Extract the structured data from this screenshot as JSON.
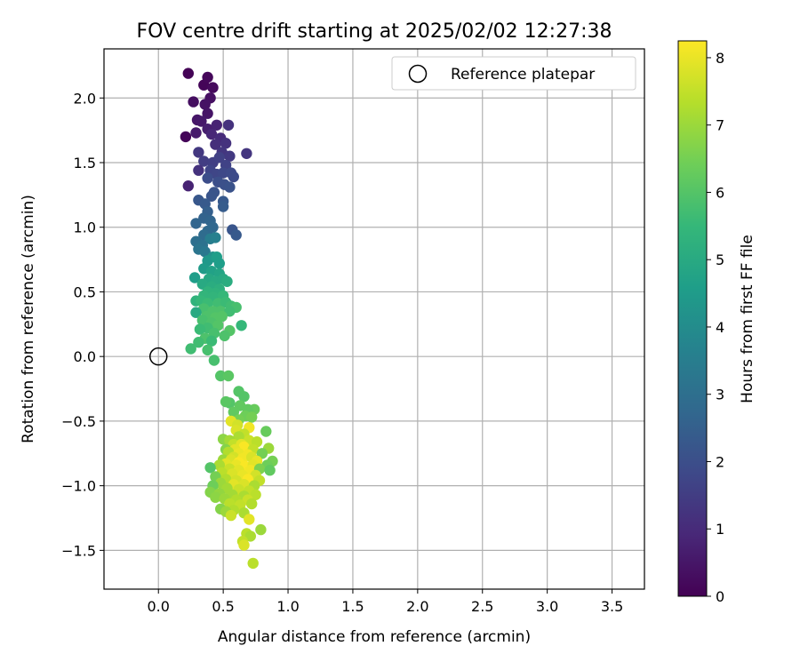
{
  "chart_data": {
    "type": "scatter",
    "title": "FOV centre drift starting at 2025/02/02 12:27:38",
    "xlabel": "Angular distance from reference (arcmin)",
    "ylabel": "Rotation from reference (arcmin)",
    "xlim": [
      -0.42,
      3.75
    ],
    "ylim": [
      -1.8,
      2.38
    ],
    "xticks": [
      0.0,
      0.5,
      1.0,
      1.5,
      2.0,
      2.5,
      3.0,
      3.5
    ],
    "xtick_labels": [
      "0.0",
      "0.5",
      "1.0",
      "1.5",
      "2.0",
      "2.5",
      "3.0",
      "3.5"
    ],
    "yticks": [
      -1.5,
      -1.0,
      -0.5,
      0.0,
      0.5,
      1.0,
      1.5,
      2.0
    ],
    "ytick_labels": [
      "−1.5",
      "−1.0",
      "−0.5",
      "0.0",
      "0.5",
      "1.0",
      "1.5",
      "2.0"
    ],
    "grid": true,
    "legend": {
      "position": "top-right",
      "entries": [
        {
          "label": "Reference platepar",
          "marker": "open-circle"
        }
      ]
    },
    "reference_point": {
      "x": 0.0,
      "y": 0.0
    },
    "colorbar": {
      "label": "Hours from first FF file",
      "min": 0,
      "max": 8.25,
      "ticks": [
        0,
        1,
        2,
        3,
        4,
        5,
        6,
        7,
        8
      ],
      "tick_labels": [
        "0",
        "1",
        "2",
        "3",
        "4",
        "5",
        "6",
        "7",
        "8"
      ],
      "colormap": "viridis"
    },
    "points": [
      [
        0.23,
        2.19,
        0.05
      ],
      [
        0.35,
        2.1,
        0.1
      ],
      [
        0.38,
        2.16,
        0.15
      ],
      [
        0.42,
        2.08,
        0.2
      ],
      [
        0.27,
        1.97,
        0.3
      ],
      [
        0.4,
        2.0,
        0.35
      ],
      [
        0.36,
        1.95,
        0.4
      ],
      [
        0.38,
        1.88,
        0.45
      ],
      [
        0.3,
        1.83,
        0.5
      ],
      [
        0.33,
        1.82,
        0.55
      ],
      [
        0.21,
        1.7,
        0.1
      ],
      [
        0.29,
        1.73,
        0.6
      ],
      [
        0.38,
        1.76,
        0.7
      ],
      [
        0.45,
        1.79,
        0.8
      ],
      [
        0.41,
        1.72,
        0.9
      ],
      [
        0.48,
        1.69,
        1.0
      ],
      [
        0.44,
        1.64,
        1.1
      ],
      [
        0.52,
        1.65,
        1.2
      ],
      [
        0.54,
        1.79,
        1.2
      ],
      [
        0.49,
        1.58,
        1.3
      ],
      [
        0.31,
        1.58,
        1.35
      ],
      [
        0.55,
        1.55,
        1.4
      ],
      [
        0.68,
        1.57,
        1.3
      ],
      [
        0.35,
        1.51,
        1.5
      ],
      [
        0.42,
        1.5,
        1.55
      ],
      [
        0.47,
        1.54,
        1.6
      ],
      [
        0.52,
        1.48,
        1.65
      ],
      [
        0.31,
        1.44,
        1.2
      ],
      [
        0.4,
        1.44,
        1.7
      ],
      [
        0.45,
        1.41,
        1.75
      ],
      [
        0.5,
        1.42,
        1.8
      ],
      [
        0.56,
        1.42,
        1.85
      ],
      [
        0.58,
        1.39,
        1.9
      ],
      [
        0.38,
        1.38,
        1.95
      ],
      [
        0.46,
        1.35,
        2.0
      ],
      [
        0.51,
        1.33,
        2.05
      ],
      [
        0.55,
        1.31,
        2.1
      ],
      [
        0.23,
        1.32,
        0.8
      ],
      [
        0.43,
        1.27,
        2.15
      ],
      [
        0.41,
        1.24,
        2.2
      ],
      [
        0.31,
        1.21,
        2.25
      ],
      [
        0.36,
        1.18,
        2.35
      ],
      [
        0.5,
        1.2,
        2.3
      ],
      [
        0.5,
        1.16,
        2.4
      ],
      [
        0.38,
        1.12,
        2.5
      ],
      [
        0.35,
        1.07,
        2.6
      ],
      [
        0.4,
        1.05,
        2.65
      ],
      [
        0.29,
        1.03,
        2.7
      ],
      [
        0.42,
        1.0,
        2.75
      ],
      [
        0.38,
        0.97,
        2.8
      ],
      [
        0.57,
        0.98,
        2.2
      ],
      [
        0.6,
        0.94,
        2.3
      ],
      [
        0.35,
        0.94,
        2.9
      ],
      [
        0.4,
        0.91,
        3.5
      ],
      [
        0.44,
        0.92,
        3.6
      ],
      [
        0.29,
        0.89,
        3.0
      ],
      [
        0.34,
        0.86,
        3.1
      ],
      [
        0.31,
        0.83,
        3.2
      ],
      [
        0.36,
        0.81,
        3.3
      ],
      [
        0.42,
        0.77,
        4.2
      ],
      [
        0.38,
        0.74,
        4.4
      ],
      [
        0.45,
        0.77,
        4.6
      ],
      [
        0.47,
        0.72,
        4.6
      ],
      [
        0.35,
        0.68,
        4.5
      ],
      [
        0.41,
        0.66,
        4.7
      ],
      [
        0.47,
        0.64,
        4.8
      ],
      [
        0.28,
        0.61,
        4.6
      ],
      [
        0.39,
        0.6,
        4.9
      ],
      [
        0.44,
        0.58,
        5.0
      ],
      [
        0.5,
        0.6,
        5.0
      ],
      [
        0.53,
        0.58,
        5.1
      ],
      [
        0.34,
        0.56,
        5.0
      ],
      [
        0.41,
        0.54,
        5.1
      ],
      [
        0.47,
        0.52,
        5.2
      ],
      [
        0.38,
        0.5,
        5.3
      ],
      [
        0.44,
        0.49,
        5.3
      ],
      [
        0.35,
        0.47,
        5.4
      ],
      [
        0.42,
        0.46,
        5.4
      ],
      [
        0.5,
        0.47,
        5.5
      ],
      [
        0.29,
        0.43,
        5.3
      ],
      [
        0.33,
        0.43,
        5.5
      ],
      [
        0.38,
        0.41,
        5.6
      ],
      [
        0.46,
        0.41,
        5.7
      ],
      [
        0.52,
        0.42,
        5.6
      ],
      [
        0.56,
        0.39,
        5.7
      ],
      [
        0.6,
        0.38,
        5.8
      ],
      [
        0.35,
        0.37,
        5.8
      ],
      [
        0.42,
        0.35,
        5.9
      ],
      [
        0.48,
        0.35,
        5.9
      ],
      [
        0.29,
        0.34,
        5.0
      ],
      [
        0.55,
        0.35,
        5.7
      ],
      [
        0.37,
        0.31,
        5.9
      ],
      [
        0.44,
        0.3,
        6.0
      ],
      [
        0.49,
        0.31,
        6.0
      ],
      [
        0.34,
        0.28,
        5.8
      ],
      [
        0.41,
        0.26,
        5.9
      ],
      [
        0.46,
        0.24,
        6.0
      ],
      [
        0.64,
        0.24,
        5.5
      ],
      [
        0.38,
        0.22,
        5.7
      ],
      [
        0.32,
        0.21,
        5.6
      ],
      [
        0.43,
        0.18,
        5.8
      ],
      [
        0.55,
        0.2,
        6.0
      ],
      [
        0.51,
        0.16,
        5.9
      ],
      [
        0.36,
        0.14,
        5.9
      ],
      [
        0.41,
        0.12,
        5.6
      ],
      [
        0.31,
        0.11,
        5.7
      ],
      [
        0.25,
        0.06,
        5.7
      ],
      [
        0.38,
        0.05,
        5.8
      ],
      [
        0.43,
        -0.03,
        5.8
      ],
      [
        0.48,
        -0.15,
        6.0
      ],
      [
        0.54,
        -0.15,
        6.1
      ],
      [
        0.62,
        -0.27,
        6.0
      ],
      [
        0.66,
        -0.31,
        6.0
      ],
      [
        0.55,
        -0.36,
        6.0
      ],
      [
        0.52,
        -0.35,
        6.1
      ],
      [
        0.63,
        -0.38,
        6.2
      ],
      [
        0.74,
        -0.41,
        6.3
      ],
      [
        0.69,
        -0.41,
        6.2
      ],
      [
        0.58,
        -0.43,
        6.2
      ],
      [
        0.67,
        -0.46,
        6.4
      ],
      [
        0.72,
        -0.47,
        6.5
      ],
      [
        0.62,
        -0.49,
        6.5
      ],
      [
        0.56,
        -0.5,
        7.9
      ],
      [
        0.61,
        -0.53,
        7.7
      ],
      [
        0.7,
        -0.55,
        8.1
      ],
      [
        0.6,
        -0.57,
        7.8
      ],
      [
        0.83,
        -0.58,
        6.3
      ],
      [
        0.66,
        -0.6,
        7.5
      ],
      [
        0.62,
        -0.62,
        7.2
      ],
      [
        0.5,
        -0.64,
        6.8
      ],
      [
        0.55,
        -0.65,
        7.1
      ],
      [
        0.7,
        -0.65,
        7.6
      ],
      [
        0.76,
        -0.66,
        7.4
      ],
      [
        0.58,
        -0.68,
        7.5
      ],
      [
        0.64,
        -0.68,
        7.9
      ],
      [
        0.66,
        -0.7,
        8.2
      ],
      [
        0.52,
        -0.72,
        6.7
      ],
      [
        0.59,
        -0.72,
        7.9
      ],
      [
        0.73,
        -0.72,
        7.5
      ],
      [
        0.85,
        -0.71,
        7.0
      ],
      [
        0.54,
        -0.74,
        7.3
      ],
      [
        0.62,
        -0.75,
        8.0
      ],
      [
        0.69,
        -0.76,
        8.1
      ],
      [
        0.8,
        -0.75,
        6.5
      ],
      [
        0.58,
        -0.78,
        7.7
      ],
      [
        0.65,
        -0.79,
        8.1
      ],
      [
        0.72,
        -0.78,
        7.8
      ],
      [
        0.5,
        -0.8,
        7.0
      ],
      [
        0.56,
        -0.8,
        7.8
      ],
      [
        0.62,
        -0.82,
        8.2
      ],
      [
        0.76,
        -0.81,
        8.0
      ],
      [
        0.88,
        -0.81,
        6.5
      ],
      [
        0.52,
        -0.83,
        7.9
      ],
      [
        0.6,
        -0.84,
        8.0
      ],
      [
        0.67,
        -0.85,
        8.2
      ],
      [
        0.73,
        -0.84,
        7.9
      ],
      [
        0.47,
        -0.84,
        7.2
      ],
      [
        0.84,
        -0.84,
        6.4
      ],
      [
        0.55,
        -0.87,
        7.6
      ],
      [
        0.62,
        -0.88,
        7.9
      ],
      [
        0.71,
        -0.88,
        8.1
      ],
      [
        0.78,
        -0.87,
        6.6
      ],
      [
        0.86,
        -0.88,
        6.2
      ],
      [
        0.4,
        -0.86,
        6.0
      ],
      [
        0.49,
        -0.9,
        7.4
      ],
      [
        0.57,
        -0.91,
        7.8
      ],
      [
        0.65,
        -0.92,
        8.0
      ],
      [
        0.75,
        -0.92,
        7.7
      ],
      [
        0.44,
        -0.93,
        6.5
      ],
      [
        0.52,
        -0.95,
        7.3
      ],
      [
        0.6,
        -0.96,
        7.7
      ],
      [
        0.69,
        -0.95,
        8.2
      ],
      [
        0.78,
        -0.96,
        7.5
      ],
      [
        0.48,
        -0.98,
        7.0
      ],
      [
        0.58,
        -0.99,
        7.9
      ],
      [
        0.66,
        -0.99,
        7.8
      ],
      [
        0.74,
        -1.0,
        7.2
      ],
      [
        0.42,
        -1.0,
        6.4
      ],
      [
        0.53,
        -1.02,
        7.1
      ],
      [
        0.62,
        -1.03,
        7.6
      ],
      [
        0.7,
        -1.04,
        7.5
      ],
      [
        0.4,
        -1.05,
        6.7
      ],
      [
        0.47,
        -1.06,
        6.9
      ],
      [
        0.57,
        -1.07,
        7.1
      ],
      [
        0.66,
        -1.08,
        7.2
      ],
      [
        0.75,
        -1.07,
        7.4
      ],
      [
        0.44,
        -1.09,
        6.8
      ],
      [
        0.51,
        -1.1,
        7.0
      ],
      [
        0.6,
        -1.11,
        7.3
      ],
      [
        0.69,
        -1.11,
        7.6
      ],
      [
        0.55,
        -1.14,
        7.4
      ],
      [
        0.63,
        -1.15,
        7.5
      ],
      [
        0.72,
        -1.14,
        7.3
      ],
      [
        0.48,
        -1.18,
        6.7
      ],
      [
        0.58,
        -1.19,
        7.3
      ],
      [
        0.52,
        -1.2,
        7.0
      ],
      [
        0.66,
        -1.21,
        7.2
      ],
      [
        0.56,
        -1.23,
        7.6
      ],
      [
        0.7,
        -1.26,
        7.9
      ],
      [
        0.79,
        -1.34,
        7.0
      ],
      [
        0.68,
        -1.37,
        7.4
      ],
      [
        0.71,
        -1.39,
        7.2
      ],
      [
        0.65,
        -1.43,
        7.5
      ],
      [
        0.66,
        -1.46,
        7.8
      ],
      [
        0.73,
        -1.6,
        7.4
      ]
    ]
  }
}
